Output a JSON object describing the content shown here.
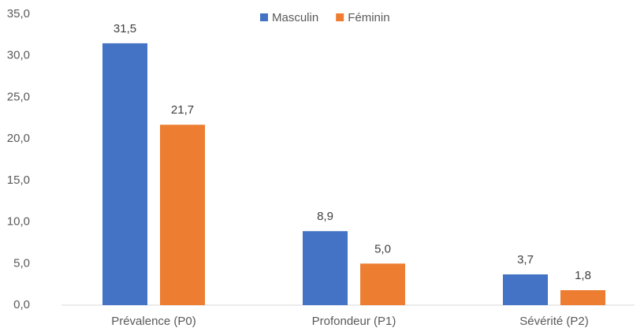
{
  "chart_data": {
    "type": "bar",
    "categories": [
      "Prévalence (P0)",
      "Profondeur (P1)",
      "Sévérité (P2)"
    ],
    "series": [
      {
        "name": "Masculin",
        "color": "#4472c4",
        "values": [
          31.5,
          8.9,
          3.7
        ],
        "value_labels": [
          "31,5",
          "8,9",
          "3,7"
        ]
      },
      {
        "name": "Féminin",
        "color": "#ed7d31",
        "values": [
          21.7,
          5.0,
          1.8
        ],
        "value_labels": [
          "21,7",
          "5,0",
          "1,8"
        ]
      }
    ],
    "ylim": [
      0,
      35
    ],
    "yticks": [
      {
        "value": 0,
        "label": "0,0"
      },
      {
        "value": 5,
        "label": "5,0"
      },
      {
        "value": 10,
        "label": "10,0"
      },
      {
        "value": 15,
        "label": "15,0"
      },
      {
        "value": 20,
        "label": "20,0"
      },
      {
        "value": 25,
        "label": "25,0"
      },
      {
        "value": 30,
        "label": "30,0"
      },
      {
        "value": 35,
        "label": "35,0"
      }
    ],
    "grid": false,
    "legend": "top"
  }
}
